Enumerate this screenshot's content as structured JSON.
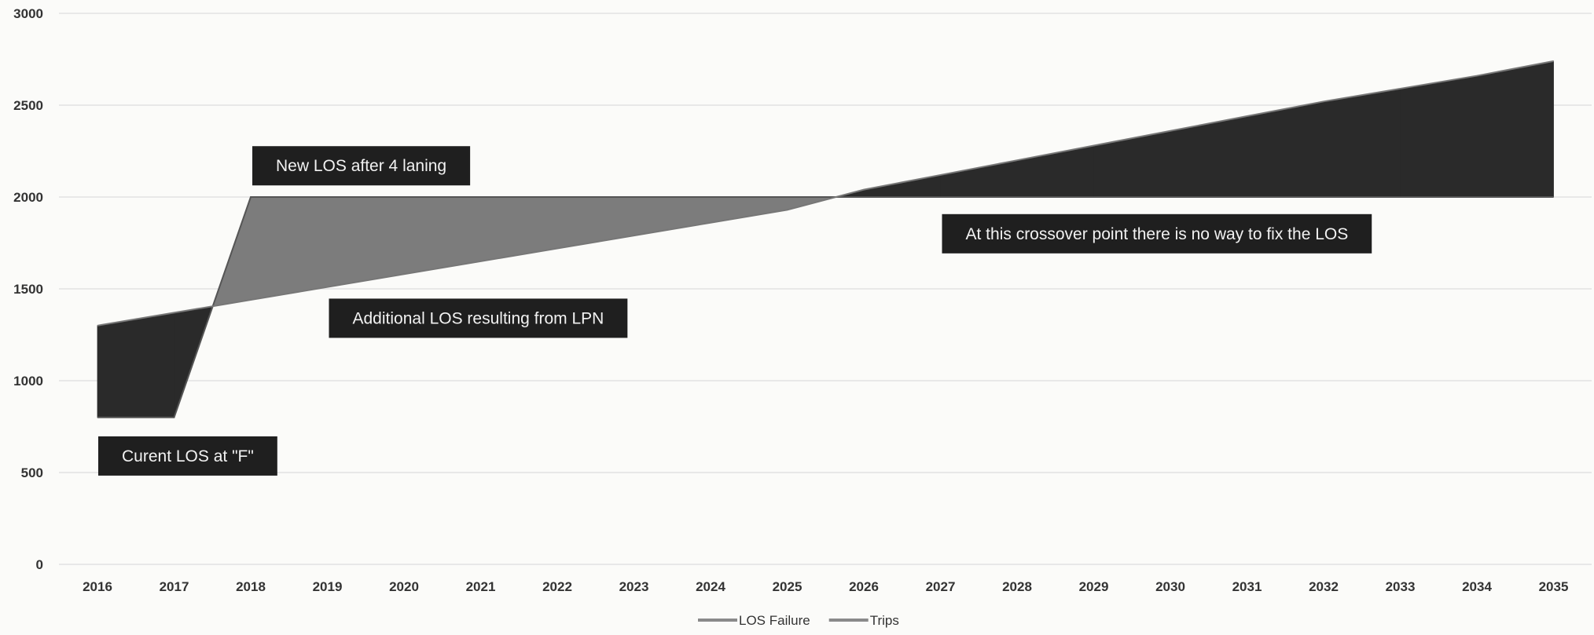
{
  "chart_data": {
    "type": "area",
    "categories": [
      "2016",
      "2017",
      "2018",
      "2019",
      "2020",
      "2021",
      "2022",
      "2023",
      "2024",
      "2025",
      "2026",
      "2027",
      "2028",
      "2029",
      "2030",
      "2031",
      "2032",
      "2033",
      "2034",
      "2035"
    ],
    "series": [
      {
        "name": "LOS Failure",
        "values": [
          800,
          800,
          2000,
          2000,
          2000,
          2000,
          2000,
          2000,
          2000,
          2000,
          2000,
          2000,
          2000,
          2000,
          2000,
          2000,
          2000,
          2000,
          2000,
          2000
        ]
      },
      {
        "name": "Trips",
        "values": [
          1300,
          1370,
          1440,
          1510,
          1580,
          1650,
          1720,
          1790,
          1860,
          1930,
          2040,
          2120,
          2200,
          2280,
          2360,
          2440,
          2520,
          2590,
          2660,
          2740
        ]
      }
    ],
    "ylim": [
      0,
      3000
    ],
    "yticks": [
      0,
      500,
      1000,
      1500,
      2000,
      2500,
      3000
    ],
    "grid": true,
    "legend": "bottom-center",
    "annotations": [
      {
        "text": "New LOS after 4 laning",
        "x": "2018",
        "y": 2170
      },
      {
        "text": "At this crossover point there is no way to fix the LOS",
        "x": "2027",
        "y": 1800
      },
      {
        "text": "Additional LOS resulting from LPN",
        "x": "2019",
        "y": 1340
      },
      {
        "text": "Curent LOS at \"F\"",
        "x": "2016",
        "y": 590
      }
    ],
    "colors": {
      "dark_fill": "#2a2a2a",
      "mid_fill": "#7c7c7c",
      "line": "#9a9a9a",
      "grid": "#e2e2e2",
      "annotation_bg": "#1f1f1f"
    }
  }
}
